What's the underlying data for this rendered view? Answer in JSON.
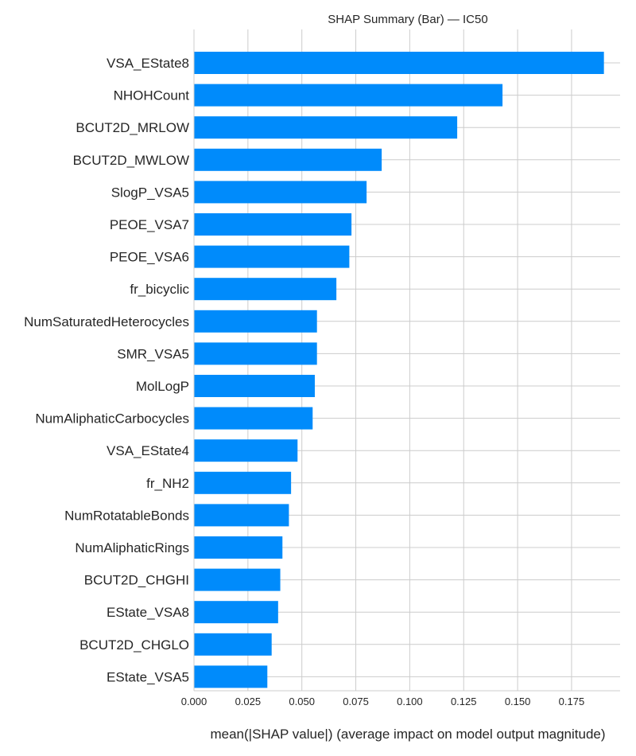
{
  "chart_data": {
    "type": "bar",
    "orientation": "horizontal",
    "title": "SHAP Summary (Bar) — IC50",
    "xlabel": "mean(|SHAP value|) (average impact on model output magnitude)",
    "ylabel": "",
    "xlim": [
      0,
      0.1975
    ],
    "grid": true,
    "bar_color": "#008bfb",
    "xticks": [
      "0.000",
      "0.025",
      "0.050",
      "0.075",
      "0.100",
      "0.125",
      "0.150",
      "0.175"
    ],
    "categories": [
      "VSA_EState8",
      "NHOHCount",
      "BCUT2D_MRLOW",
      "BCUT2D_MWLOW",
      "SlogP_VSA5",
      "PEOE_VSA7",
      "PEOE_VSA6",
      "fr_bicyclic",
      "NumSaturatedHeterocycles",
      "SMR_VSA5",
      "MolLogP",
      "NumAliphaticCarbocycles",
      "VSA_EState4",
      "fr_NH2",
      "NumRotatableBonds",
      "NumAliphaticRings",
      "BCUT2D_CHGHI",
      "EState_VSA8",
      "BCUT2D_CHGLO",
      "EState_VSA5"
    ],
    "values": [
      0.19,
      0.143,
      0.122,
      0.087,
      0.08,
      0.073,
      0.072,
      0.066,
      0.057,
      0.057,
      0.056,
      0.055,
      0.048,
      0.045,
      0.044,
      0.041,
      0.04,
      0.039,
      0.036,
      0.034
    ]
  }
}
